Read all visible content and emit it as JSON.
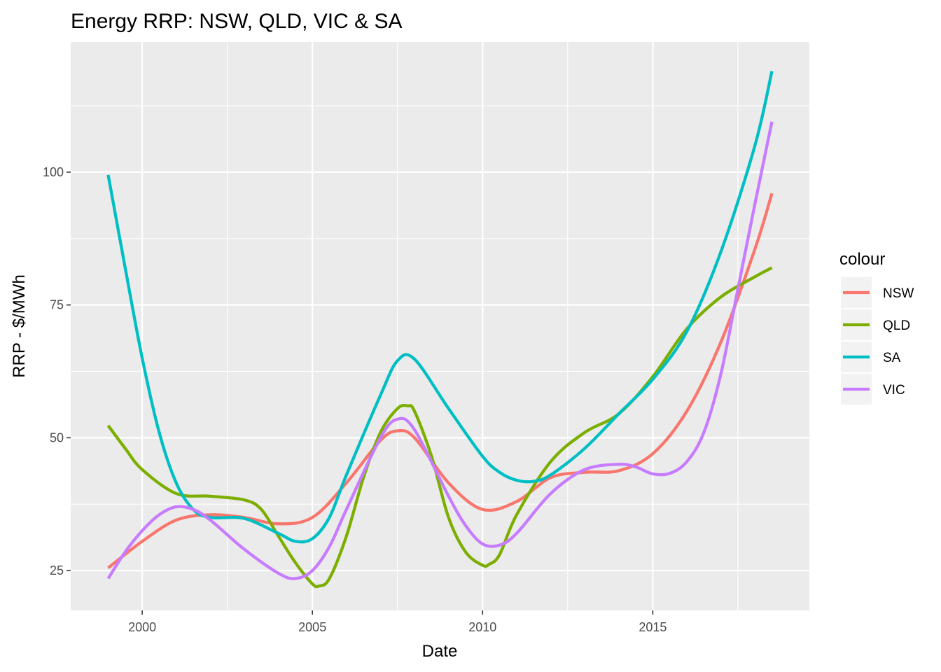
{
  "chart_data": {
    "type": "line",
    "title": "Energy RRP: NSW, QLD, VIC & SA",
    "xlabel": "Date",
    "ylabel": "RRP - $/MWh",
    "xlim": [
      1997.9,
      2019.6
    ],
    "ylim": [
      17.5,
      124.5
    ],
    "x_ticks": [
      2000,
      2005,
      2010,
      2015
    ],
    "y_ticks": [
      25,
      50,
      75,
      100
    ],
    "grid": true,
    "legend": {
      "title": "colour",
      "position": "right"
    },
    "series": [
      {
        "name": "NSW",
        "color": "#F8766D",
        "x": [
          1999.0,
          2000.0,
          2001.0,
          2002.0,
          2003.0,
          2004.0,
          2005.0,
          2006.0,
          2007.0,
          2007.5,
          2008.0,
          2009.0,
          2010.0,
          2011.0,
          2012.0,
          2013.0,
          2014.0,
          2015.0,
          2016.0,
          2017.0,
          2018.0,
          2018.5
        ],
        "y": [
          25.5,
          30.5,
          34.5,
          35.5,
          35.0,
          33.8,
          35.0,
          41.5,
          49.5,
          51.3,
          50.0,
          41.5,
          36.5,
          38.0,
          42.5,
          43.5,
          43.8,
          47.0,
          55.0,
          68.0,
          85.5,
          96.0
        ]
      },
      {
        "name": "QLD",
        "color": "#7CAE00",
        "x": [
          1999.0,
          1999.5,
          2000.0,
          2001.0,
          2002.0,
          2003.0,
          2003.5,
          2004.0,
          2004.5,
          2005.0,
          2005.2,
          2005.5,
          2006.0,
          2006.5,
          2007.0,
          2007.5,
          2007.8,
          2008.0,
          2008.5,
          2009.0,
          2009.5,
          2010.0,
          2010.2,
          2010.5,
          2011.0,
          2012.0,
          2013.0,
          2014.0,
          2015.0,
          2016.0,
          2017.0,
          2018.0,
          2018.5
        ],
        "y": [
          52.3,
          48.0,
          44.0,
          39.5,
          39.0,
          38.3,
          36.5,
          31.5,
          26.5,
          22.5,
          22.1,
          23.5,
          31.5,
          42.5,
          51.0,
          55.5,
          56.0,
          55.0,
          46.5,
          35.0,
          28.5,
          26.0,
          26.2,
          28.0,
          35.5,
          45.5,
          51.0,
          54.5,
          61.5,
          70.5,
          76.5,
          80.3,
          82.0
        ]
      },
      {
        "name": "SA",
        "color": "#00BFC4",
        "x": [
          1999.0,
          1999.5,
          2000.0,
          2000.5,
          2001.0,
          2001.5,
          2002.0,
          2003.0,
          2004.0,
          2004.5,
          2005.0,
          2005.5,
          2006.0,
          2007.0,
          2007.5,
          2008.0,
          2009.0,
          2010.0,
          2010.5,
          2011.0,
          2011.5,
          2012.0,
          2013.0,
          2014.0,
          2015.0,
          2016.0,
          2017.0,
          2018.0,
          2018.5
        ],
        "y": [
          99.5,
          82.0,
          65.0,
          51.0,
          41.5,
          36.5,
          35.0,
          34.8,
          32.0,
          30.5,
          31.0,
          35.0,
          43.0,
          58.0,
          64.5,
          64.8,
          55.5,
          46.5,
          43.5,
          42.0,
          41.8,
          43.0,
          48.0,
          54.5,
          61.0,
          70.0,
          85.0,
          105.0,
          119.0
        ]
      },
      {
        "name": "VIC",
        "color": "#C77CFF",
        "x": [
          1999.0,
          1999.5,
          2000.0,
          2000.5,
          2001.0,
          2001.5,
          2002.0,
          2003.0,
          2004.0,
          2004.5,
          2005.0,
          2005.5,
          2006.0,
          2007.0,
          2007.5,
          2008.0,
          2009.0,
          2009.5,
          2010.0,
          2010.5,
          2011.0,
          2012.0,
          2013.0,
          2014.0,
          2014.5,
          2015.0,
          2015.5,
          2016.0,
          2016.5,
          2017.0,
          2017.5,
          2018.0,
          2018.5
        ],
        "y": [
          23.5,
          28.5,
          32.5,
          35.5,
          37.0,
          36.5,
          34.5,
          29.0,
          24.5,
          23.5,
          25.0,
          29.5,
          36.5,
          50.0,
          53.5,
          51.5,
          39.0,
          33.5,
          30.0,
          29.8,
          32.0,
          39.5,
          44.0,
          45.0,
          44.5,
          43.2,
          43.3,
          45.5,
          51.0,
          62.0,
          78.0,
          94.0,
          109.5
        ]
      }
    ]
  }
}
